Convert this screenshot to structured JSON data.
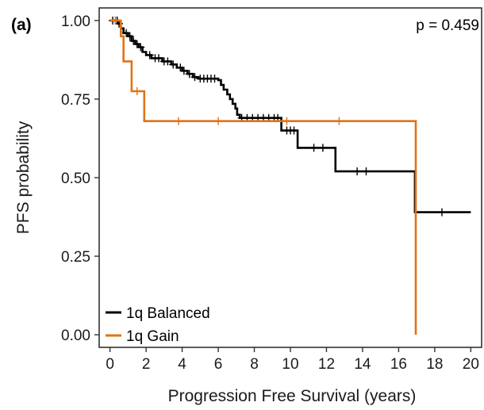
{
  "chart_data": {
    "type": "line",
    "panel_label": "(a)",
    "annotation": "p = 0.459",
    "xlabel": "Progression Free Survival (years)",
    "ylabel": "PFS probability",
    "xlim": [
      -0.6,
      20.6
    ],
    "ylim": [
      -0.04,
      1.04
    ],
    "xticks": [
      0,
      2,
      4,
      6,
      8,
      10,
      12,
      14,
      16,
      18,
      20
    ],
    "xtick_labels": [
      "0",
      "2",
      "4",
      "6",
      "8",
      "10",
      "12",
      "14",
      "16",
      "18",
      "20"
    ],
    "yticks": [
      0,
      0.25,
      0.5,
      0.75,
      1.0
    ],
    "ytick_labels": [
      "0.00",
      "0.25",
      "0.50",
      "0.75",
      "1.00"
    ],
    "grid": false,
    "legend_position": "bottom-left",
    "series": [
      {
        "name": "1q Balanced",
        "color": "#000000",
        "step": [
          [
            0,
            1.0
          ],
          [
            0.45,
            0.99
          ],
          [
            0.6,
            0.975
          ],
          [
            0.75,
            0.96
          ],
          [
            1.0,
            0.95
          ],
          [
            1.2,
            0.935
          ],
          [
            1.4,
            0.925
          ],
          [
            1.6,
            0.915
          ],
          [
            1.8,
            0.9
          ],
          [
            2.0,
            0.89
          ],
          [
            2.3,
            0.88
          ],
          [
            2.9,
            0.87
          ],
          [
            3.4,
            0.86
          ],
          [
            3.7,
            0.85
          ],
          [
            4.0,
            0.84
          ],
          [
            4.3,
            0.83
          ],
          [
            4.6,
            0.82
          ],
          [
            4.9,
            0.815
          ],
          [
            6.0,
            0.81
          ],
          [
            6.15,
            0.795
          ],
          [
            6.3,
            0.78
          ],
          [
            6.5,
            0.765
          ],
          [
            6.65,
            0.75
          ],
          [
            6.8,
            0.735
          ],
          [
            6.95,
            0.72
          ],
          [
            7.05,
            0.7
          ],
          [
            7.2,
            0.69
          ],
          [
            9.5,
            0.65
          ],
          [
            10.4,
            0.595
          ],
          [
            12.5,
            0.52
          ],
          [
            16.9,
            0.39
          ],
          [
            20.0,
            0.39
          ]
        ],
        "censor": [
          [
            0.15,
            1.0
          ],
          [
            0.3,
            1.0
          ],
          [
            0.4,
            1.0
          ],
          [
            0.5,
            0.99
          ],
          [
            0.9,
            0.96
          ],
          [
            1.1,
            0.95
          ],
          [
            1.3,
            0.935
          ],
          [
            1.5,
            0.925
          ],
          [
            1.7,
            0.915
          ],
          [
            2.2,
            0.89
          ],
          [
            2.5,
            0.88
          ],
          [
            2.7,
            0.88
          ],
          [
            3.0,
            0.87
          ],
          [
            3.2,
            0.87
          ],
          [
            3.5,
            0.86
          ],
          [
            3.9,
            0.85
          ],
          [
            4.1,
            0.84
          ],
          [
            4.4,
            0.83
          ],
          [
            4.7,
            0.82
          ],
          [
            5.0,
            0.815
          ],
          [
            5.2,
            0.815
          ],
          [
            5.4,
            0.815
          ],
          [
            5.6,
            0.815
          ],
          [
            5.8,
            0.815
          ],
          [
            7.3,
            0.69
          ],
          [
            7.6,
            0.69
          ],
          [
            7.9,
            0.69
          ],
          [
            8.2,
            0.69
          ],
          [
            8.5,
            0.69
          ],
          [
            8.8,
            0.69
          ],
          [
            9.1,
            0.69
          ],
          [
            9.3,
            0.69
          ],
          [
            9.8,
            0.65
          ],
          [
            10.0,
            0.65
          ],
          [
            10.2,
            0.65
          ],
          [
            11.3,
            0.595
          ],
          [
            11.8,
            0.595
          ],
          [
            13.7,
            0.52
          ],
          [
            14.2,
            0.52
          ],
          [
            18.4,
            0.39
          ]
        ]
      },
      {
        "name": "1q Gain",
        "color": "#e07317",
        "step": [
          [
            0,
            1.0
          ],
          [
            0.6,
            0.95
          ],
          [
            0.75,
            0.87
          ],
          [
            1.2,
            0.775
          ],
          [
            1.9,
            0.68
          ],
          [
            16.95,
            0.0
          ]
        ],
        "censor": [
          [
            0.3,
            1.0
          ],
          [
            1.5,
            0.775
          ],
          [
            3.8,
            0.68
          ],
          [
            6.0,
            0.68
          ],
          [
            9.8,
            0.68
          ],
          [
            12.7,
            0.68
          ]
        ]
      }
    ]
  }
}
